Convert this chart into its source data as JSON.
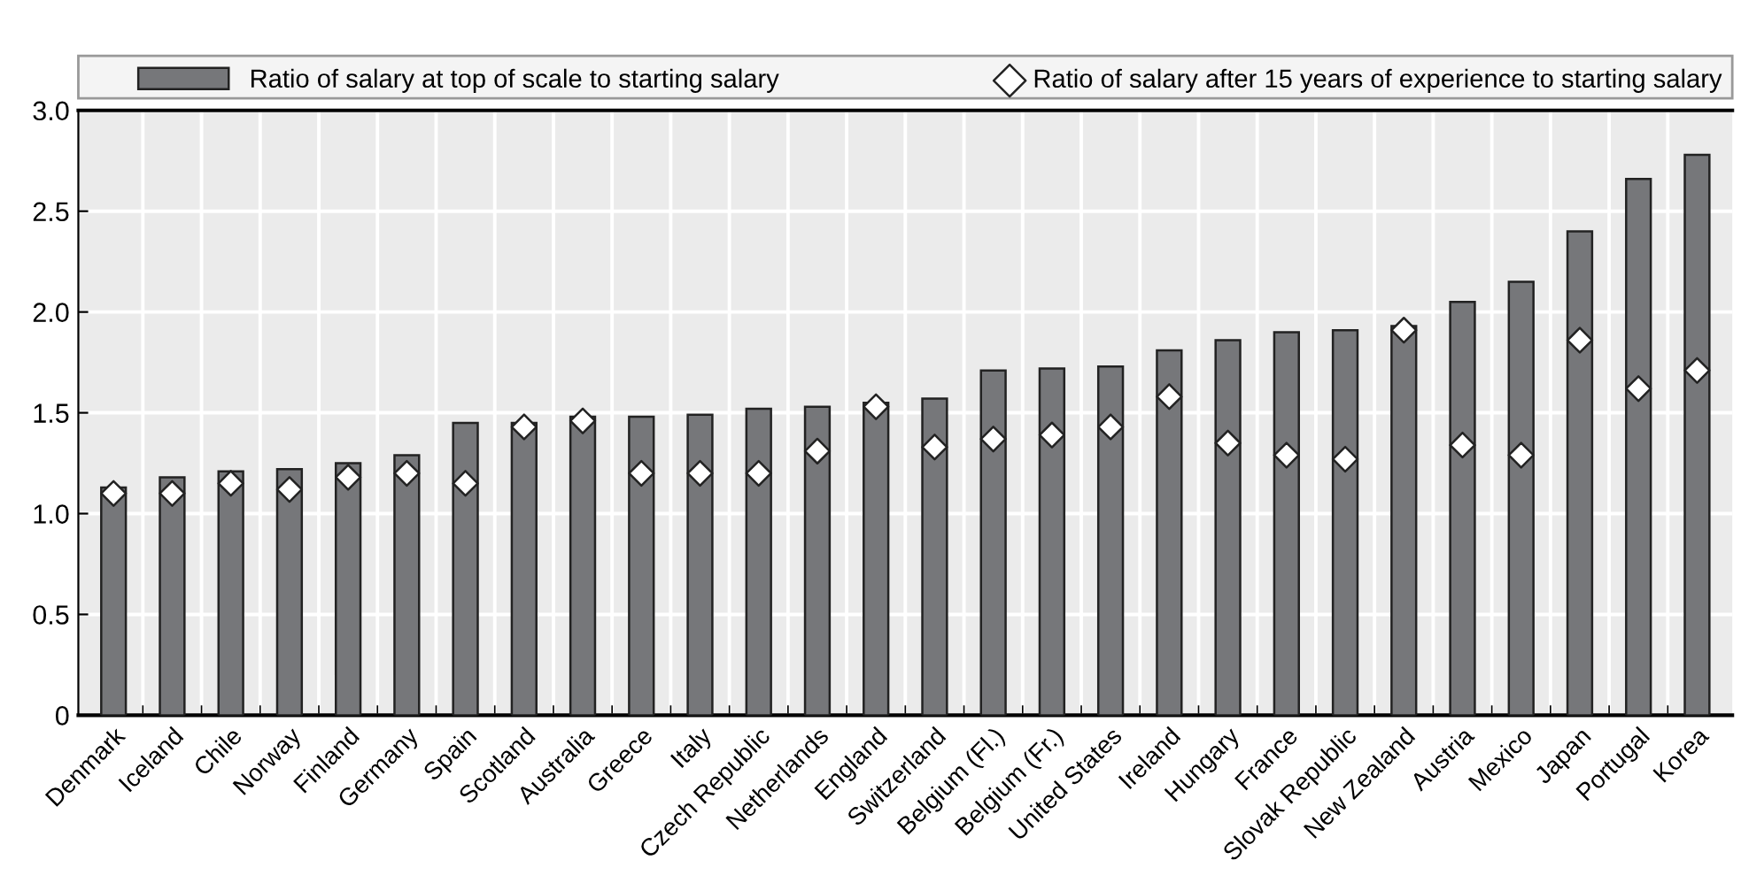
{
  "chart_data": {
    "type": "bar",
    "categories": [
      "Denmark",
      "Iceland",
      "Chile",
      "Norway",
      "Finland",
      "Germany",
      "Spain",
      "Scotland",
      "Australia",
      "Greece",
      "Italy",
      "Czech Republic",
      "Netherlands",
      "England",
      "Switzerland",
      "Belgium (Fl.)",
      "Belgium (Fr.)",
      "United States",
      "Ireland",
      "Hungary",
      "France",
      "Slovak Republic",
      "New Zealand",
      "Austria",
      "Mexico",
      "Japan",
      "Portugal",
      "Korea"
    ],
    "series": [
      {
        "name": "Ratio of salary at top of scale to starting salary",
        "color": "#76777a",
        "values": [
          1.13,
          1.18,
          1.21,
          1.22,
          1.25,
          1.29,
          1.45,
          1.45,
          1.48,
          1.48,
          1.49,
          1.52,
          1.53,
          1.55,
          1.57,
          1.71,
          1.72,
          1.73,
          1.81,
          1.86,
          1.9,
          1.91,
          1.93,
          2.05,
          2.15,
          2.4,
          2.66,
          2.78
        ]
      },
      {
        "name": "Ratio of salary after 15 years of experience to starting salary",
        "type": "scatter",
        "color": "#ffffff",
        "marker": "diamond",
        "values": [
          1.1,
          1.1,
          1.15,
          1.12,
          1.18,
          1.2,
          1.15,
          1.43,
          1.46,
          1.2,
          1.2,
          1.2,
          1.31,
          1.53,
          1.33,
          1.37,
          1.39,
          1.43,
          1.58,
          1.35,
          1.29,
          1.27,
          1.91,
          1.34,
          1.29,
          1.86,
          1.62,
          1.71
        ]
      }
    ],
    "ylim": [
      0,
      3.0
    ],
    "yticks": [
      0,
      {
        "value": 0.5,
        "label": "0.5"
      },
      {
        "value": 1.0,
        "label": "1.0"
      },
      {
        "value": 1.5,
        "label": "1.5"
      },
      {
        "value": 2.0,
        "label": "2.0"
      },
      {
        "value": 2.5,
        "label": "2.5"
      },
      {
        "value": 3.0,
        "label": "3.0"
      }
    ],
    "grid": true,
    "legend": "top"
  }
}
